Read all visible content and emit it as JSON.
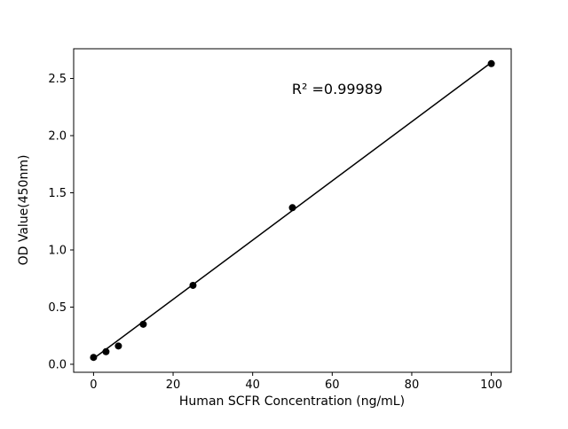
{
  "chart_data": {
    "type": "scatter",
    "title": "",
    "xlabel": "Human SCFR Concentration (ng/mL)",
    "ylabel": "OD Value(450nm)",
    "annotation": "R² =0.99989",
    "x": [
      0,
      3.125,
      6.25,
      12.5,
      25,
      50,
      100
    ],
    "y": [
      0.06,
      0.11,
      0.16,
      0.35,
      0.69,
      1.37,
      2.63
    ],
    "fit_line": {
      "x": [
        0,
        100
      ],
      "y": [
        0.05,
        2.64
      ]
    },
    "xlim": [
      -5,
      105
    ],
    "ylim": [
      -0.07,
      2.76
    ],
    "xtick_values": [
      0,
      20,
      40,
      60,
      80,
      100
    ],
    "xtick_labels": [
      "0",
      "20",
      "40",
      "60",
      "80",
      "100"
    ],
    "ytick_values": [
      0.0,
      0.5,
      1.0,
      1.5,
      2.0,
      2.5
    ],
    "ytick_labels": [
      "0.0",
      "0.5",
      "1.0",
      "1.5",
      "2.0",
      "2.5"
    ],
    "grid": "off",
    "legend": "none",
    "marker_color": "#000000",
    "line_color": "#000000",
    "background_color": "#ffffff"
  }
}
